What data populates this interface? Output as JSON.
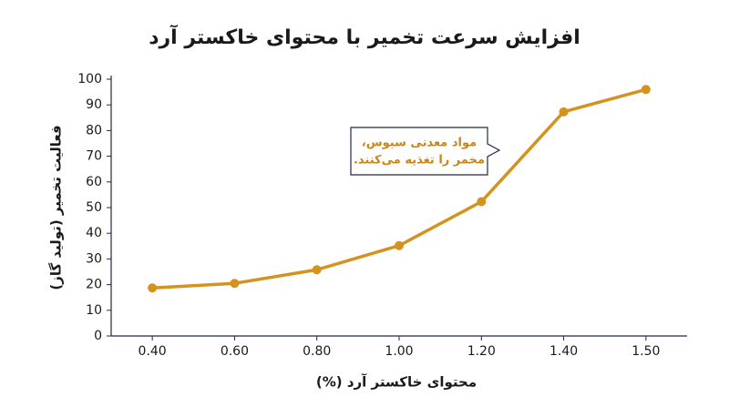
{
  "chart_data": {
    "type": "line",
    "title": "افزایش سرعت تخمیر با محتوای خاکستر آرد",
    "x_label": "محتوای خاکستر آرد (%)",
    "y_label": "فعالیت تخمیر (تولید گاز)",
    "categories": [
      "0.40",
      "0.60",
      "0.80",
      "1.00",
      "1.20",
      "1.40",
      "1.50"
    ],
    "values": [
      18.7,
      20.5,
      25.8,
      35.2,
      52.3,
      87.3,
      96
    ],
    "color": "#d4921f",
    "ylim": [
      0,
      100
    ],
    "yticks": [
      0,
      10,
      20,
      30,
      40,
      50,
      60,
      70,
      80,
      90,
      100
    ],
    "annotation": [
      "مواد معدنی سبوس،",
      "مخمر را تغذیه می‌کنند."
    ]
  }
}
